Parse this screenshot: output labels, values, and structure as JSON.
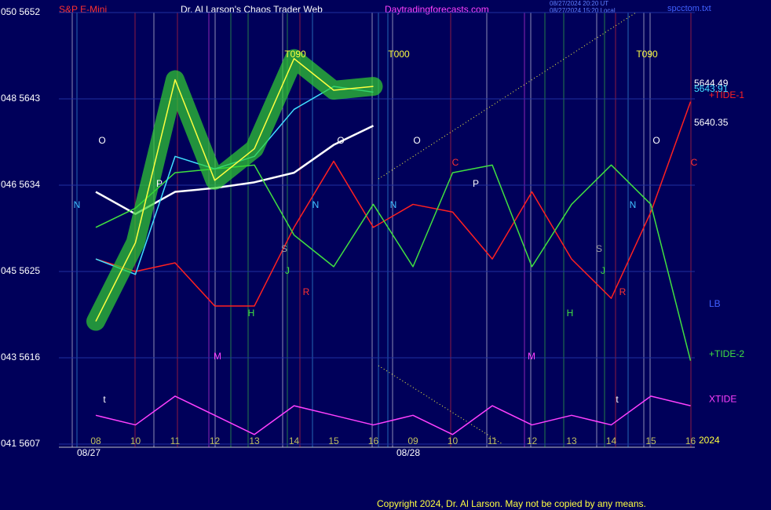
{
  "chart_data": {
    "type": "line",
    "header": {
      "instrument": "S&P E-Mini",
      "title": "Dr. Al Larson's Chaos Trader Web",
      "site": "Daytradingforecasts.com",
      "file": "spcctom.txt",
      "stamp_ut": "08/27/2024 20:20 UT",
      "stamp_local": "08/27/2024 15:20 Local"
    },
    "categories": [
      "08",
      "10",
      "11",
      "12",
      "13",
      "14",
      "15",
      "16",
      "09",
      "10",
      "11",
      "12",
      "13",
      "14",
      "15",
      "16"
    ],
    "dates": [
      "08/27",
      "08/28"
    ],
    "year": "2024",
    "ylim": [
      5607,
      5652
    ],
    "yticks": [
      {
        "value": 5652,
        "label": "050 5652"
      },
      {
        "value": 5643,
        "label": "048 5643"
      },
      {
        "value": 5634,
        "label": "046 5634"
      },
      {
        "value": 5625,
        "label": "045 5625"
      },
      {
        "value": 5616,
        "label": "043 5616"
      },
      {
        "value": 5607,
        "label": "041 5607"
      }
    ],
    "grid": true,
    "series": [
      {
        "color": "#ffffff",
        "values": [
          5633.3,
          5631,
          5633.3,
          5633.7,
          5634.3,
          5635.3,
          5638.2,
          5640.2,
          null,
          null,
          null,
          null,
          null,
          null,
          null,
          null
        ]
      },
      {
        "color": "#ff2020",
        "name": "+TIDE-1",
        "values": [
          5626.3,
          5625,
          5625.9,
          5621.4,
          5621.4,
          5629.6,
          5636.5,
          5629.6,
          5632,
          5631.2,
          5626.3,
          5633.3,
          5626.3,
          5622.2,
          5631.2,
          5642.7
        ]
      },
      {
        "color": "#40e040",
        "name": "+TIDE-2",
        "values": [
          5629.6,
          5631.6,
          5635.3,
          5635.7,
          5636.1,
          5628.8,
          5625.5,
          5632,
          5625.5,
          5635.3,
          5636.1,
          5625.5,
          5632,
          5636.1,
          5632,
          5615.7
        ]
      },
      {
        "color": "#ff40ff",
        "name": "XTIDE",
        "values": [
          5610,
          5609,
          5612,
          5610,
          5608,
          5611,
          5610,
          5609,
          5610,
          5608,
          5611,
          5609,
          5610,
          5609,
          5612,
          5611
        ]
      },
      {
        "color": "#40e0ff",
        "values": [
          5626.3,
          5624.7,
          5637,
          5635.7,
          5637,
          5641.9,
          5644.3,
          5643.7,
          null,
          null,
          null,
          null,
          null,
          null,
          null,
          null
        ]
      },
      {
        "color": "#ffff40",
        "values": [
          5619.8,
          5628,
          5645,
          5634.5,
          5637.8,
          5647.2,
          5643.9,
          5644.3,
          null,
          null,
          null,
          null,
          null,
          null,
          null,
          null
        ]
      }
    ],
    "price_labels": [
      "5644.49",
      "5643.91",
      "5640.35"
    ],
    "annotations": [
      "T090",
      "T000",
      "T090",
      "O",
      "O",
      "O",
      "O",
      "N",
      "N",
      "N",
      "N",
      "P",
      "P",
      "C",
      "C",
      "S",
      "S",
      "J",
      "J",
      "R",
      "R",
      "H",
      "H",
      "M",
      "M",
      "t",
      "t",
      "LB"
    ],
    "copyright": "Copyright 2024, Dr. Al Larson. May not be copied by any means."
  }
}
